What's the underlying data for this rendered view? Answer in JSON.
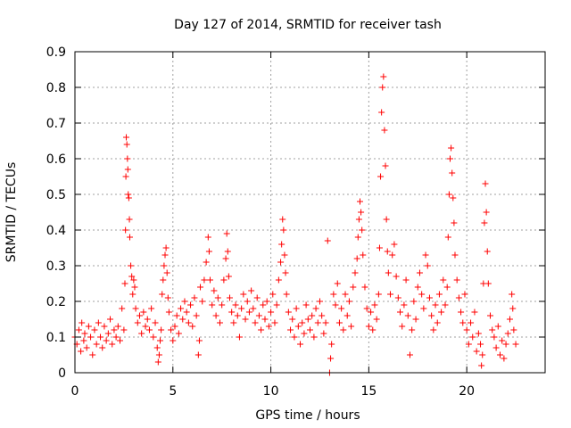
{
  "chart_data": {
    "type": "scatter",
    "title": "Day 127 of 2014, SRMTID for receiver tash",
    "xlabel": "GPS time / hours",
    "ylabel": "SRMTID / TECUs",
    "xlim": [
      0,
      24
    ],
    "ylim": [
      0,
      0.9
    ],
    "xticks": [
      0,
      5,
      10,
      15,
      20
    ],
    "xtick_labels": [
      "0",
      "5",
      "10",
      "15",
      "20"
    ],
    "yticks": [
      0,
      0.1,
      0.2,
      0.3,
      0.4,
      0.5,
      0.6,
      0.7,
      0.8,
      0.9
    ],
    "ytick_labels": [
      "0",
      "0.1",
      "0.2",
      "0.3",
      "0.4",
      "0.5",
      "0.6",
      "0.7",
      "0.8",
      "0.9"
    ],
    "grid": true,
    "marker": "plus",
    "series": [
      {
        "name": "SRMTID",
        "color": "#ff0000",
        "points": [
          [
            0.0,
            0.1
          ],
          [
            0.1,
            0.08
          ],
          [
            0.2,
            0.12
          ],
          [
            0.3,
            0.06
          ],
          [
            0.35,
            0.14
          ],
          [
            0.45,
            0.09
          ],
          [
            0.5,
            0.11
          ],
          [
            0.6,
            0.07
          ],
          [
            0.7,
            0.13
          ],
          [
            0.8,
            0.1
          ],
          [
            0.9,
            0.05
          ],
          [
            1.0,
            0.12
          ],
          [
            1.1,
            0.08
          ],
          [
            1.2,
            0.14
          ],
          [
            1.3,
            0.1
          ],
          [
            1.4,
            0.07
          ],
          [
            1.5,
            0.13
          ],
          [
            1.6,
            0.09
          ],
          [
            1.7,
            0.11
          ],
          [
            1.8,
            0.15
          ],
          [
            1.9,
            0.08
          ],
          [
            2.0,
            0.12
          ],
          [
            2.1,
            0.1
          ],
          [
            2.2,
            0.13
          ],
          [
            2.3,
            0.09
          ],
          [
            2.4,
            0.18
          ],
          [
            2.5,
            0.12
          ],
          [
            2.55,
            0.25
          ],
          [
            2.58,
            0.4
          ],
          [
            2.6,
            0.55
          ],
          [
            2.62,
            0.66
          ],
          [
            2.65,
            0.64
          ],
          [
            2.68,
            0.6
          ],
          [
            2.7,
            0.57
          ],
          [
            2.72,
            0.5
          ],
          [
            2.75,
            0.49
          ],
          [
            2.78,
            0.43
          ],
          [
            2.8,
            0.38
          ],
          [
            2.85,
            0.3
          ],
          [
            2.9,
            0.27
          ],
          [
            2.95,
            0.22
          ],
          [
            3.0,
            0.26
          ],
          [
            3.05,
            0.24
          ],
          [
            3.1,
            0.18
          ],
          [
            3.2,
            0.14
          ],
          [
            3.3,
            0.16
          ],
          [
            3.4,
            0.11
          ],
          [
            3.5,
            0.17
          ],
          [
            3.6,
            0.13
          ],
          [
            3.7,
            0.15
          ],
          [
            3.8,
            0.12
          ],
          [
            3.9,
            0.18
          ],
          [
            4.0,
            0.1
          ],
          [
            4.1,
            0.14
          ],
          [
            4.2,
            0.07
          ],
          [
            4.25,
            0.03
          ],
          [
            4.3,
            0.05
          ],
          [
            4.35,
            0.09
          ],
          [
            4.4,
            0.12
          ],
          [
            4.45,
            0.22
          ],
          [
            4.5,
            0.26
          ],
          [
            4.55,
            0.3
          ],
          [
            4.6,
            0.33
          ],
          [
            4.65,
            0.35
          ],
          [
            4.7,
            0.28
          ],
          [
            4.75,
            0.21
          ],
          [
            4.8,
            0.17
          ],
          [
            4.9,
            0.12
          ],
          [
            5.0,
            0.09
          ],
          [
            5.1,
            0.13
          ],
          [
            5.2,
            0.16
          ],
          [
            5.3,
            0.11
          ],
          [
            5.4,
            0.18
          ],
          [
            5.5,
            0.15
          ],
          [
            5.6,
            0.2
          ],
          [
            5.7,
            0.17
          ],
          [
            5.8,
            0.14
          ],
          [
            5.9,
            0.19
          ],
          [
            6.0,
            0.13
          ],
          [
            6.1,
            0.21
          ],
          [
            6.2,
            0.16
          ],
          [
            6.3,
            0.05
          ],
          [
            6.35,
            0.09
          ],
          [
            6.4,
            0.24
          ],
          [
            6.5,
            0.2
          ],
          [
            6.6,
            0.26
          ],
          [
            6.7,
            0.31
          ],
          [
            6.8,
            0.38
          ],
          [
            6.85,
            0.34
          ],
          [
            6.9,
            0.26
          ],
          [
            7.0,
            0.19
          ],
          [
            7.1,
            0.23
          ],
          [
            7.2,
            0.16
          ],
          [
            7.3,
            0.21
          ],
          [
            7.4,
            0.14
          ],
          [
            7.5,
            0.19
          ],
          [
            7.6,
            0.26
          ],
          [
            7.7,
            0.32
          ],
          [
            7.75,
            0.39
          ],
          [
            7.8,
            0.34
          ],
          [
            7.85,
            0.27
          ],
          [
            7.9,
            0.21
          ],
          [
            8.0,
            0.17
          ],
          [
            8.1,
            0.14
          ],
          [
            8.2,
            0.19
          ],
          [
            8.3,
            0.16
          ],
          [
            8.4,
            0.1
          ],
          [
            8.5,
            0.18
          ],
          [
            8.6,
            0.22
          ],
          [
            8.7,
            0.15
          ],
          [
            8.8,
            0.2
          ],
          [
            8.9,
            0.17
          ],
          [
            9.0,
            0.23
          ],
          [
            9.1,
            0.18
          ],
          [
            9.2,
            0.14
          ],
          [
            9.3,
            0.21
          ],
          [
            9.4,
            0.16
          ],
          [
            9.5,
            0.12
          ],
          [
            9.6,
            0.19
          ],
          [
            9.7,
            0.15
          ],
          [
            9.8,
            0.2
          ],
          [
            9.9,
            0.13
          ],
          [
            10.0,
            0.17
          ],
          [
            10.1,
            0.22
          ],
          [
            10.2,
            0.14
          ],
          [
            10.3,
            0.19
          ],
          [
            10.4,
            0.26
          ],
          [
            10.5,
            0.31
          ],
          [
            10.55,
            0.36
          ],
          [
            10.6,
            0.43
          ],
          [
            10.65,
            0.4
          ],
          [
            10.7,
            0.33
          ],
          [
            10.75,
            0.28
          ],
          [
            10.8,
            0.22
          ],
          [
            10.9,
            0.17
          ],
          [
            11.0,
            0.12
          ],
          [
            11.1,
            0.15
          ],
          [
            11.2,
            0.1
          ],
          [
            11.3,
            0.18
          ],
          [
            11.4,
            0.13
          ],
          [
            11.5,
            0.08
          ],
          [
            11.6,
            0.14
          ],
          [
            11.7,
            0.11
          ],
          [
            11.8,
            0.19
          ],
          [
            11.9,
            0.15
          ],
          [
            12.0,
            0.12
          ],
          [
            12.1,
            0.16
          ],
          [
            12.2,
            0.1
          ],
          [
            12.3,
            0.18
          ],
          [
            12.4,
            0.14
          ],
          [
            12.5,
            0.2
          ],
          [
            12.6,
            0.16
          ],
          [
            12.7,
            0.11
          ],
          [
            12.8,
            0.14
          ],
          [
            12.9,
            0.37
          ],
          [
            13.0,
            0.0
          ],
          [
            13.05,
            0.04
          ],
          [
            13.1,
            0.08
          ],
          [
            13.2,
            0.22
          ],
          [
            13.3,
            0.19
          ],
          [
            13.4,
            0.25
          ],
          [
            13.5,
            0.14
          ],
          [
            13.6,
            0.18
          ],
          [
            13.7,
            0.12
          ],
          [
            13.8,
            0.22
          ],
          [
            13.9,
            0.16
          ],
          [
            14.0,
            0.2
          ],
          [
            14.1,
            0.13
          ],
          [
            14.2,
            0.24
          ],
          [
            14.3,
            0.28
          ],
          [
            14.4,
            0.32
          ],
          [
            14.45,
            0.38
          ],
          [
            14.5,
            0.43
          ],
          [
            14.55,
            0.48
          ],
          [
            14.6,
            0.45
          ],
          [
            14.65,
            0.4
          ],
          [
            14.7,
            0.33
          ],
          [
            14.8,
            0.24
          ],
          [
            14.9,
            0.18
          ],
          [
            15.0,
            0.13
          ],
          [
            15.1,
            0.17
          ],
          [
            15.2,
            0.12
          ],
          [
            15.3,
            0.19
          ],
          [
            15.4,
            0.15
          ],
          [
            15.5,
            0.22
          ],
          [
            15.55,
            0.35
          ],
          [
            15.6,
            0.55
          ],
          [
            15.65,
            0.73
          ],
          [
            15.7,
            0.8
          ],
          [
            15.75,
            0.83
          ],
          [
            15.8,
            0.68
          ],
          [
            15.85,
            0.58
          ],
          [
            15.9,
            0.43
          ],
          [
            15.95,
            0.34
          ],
          [
            16.0,
            0.28
          ],
          [
            16.1,
            0.22
          ],
          [
            16.2,
            0.33
          ],
          [
            16.3,
            0.36
          ],
          [
            16.4,
            0.27
          ],
          [
            16.5,
            0.21
          ],
          [
            16.6,
            0.17
          ],
          [
            16.7,
            0.13
          ],
          [
            16.8,
            0.19
          ],
          [
            16.9,
            0.26
          ],
          [
            17.0,
            0.16
          ],
          [
            17.1,
            0.05
          ],
          [
            17.2,
            0.12
          ],
          [
            17.3,
            0.2
          ],
          [
            17.4,
            0.15
          ],
          [
            17.5,
            0.24
          ],
          [
            17.6,
            0.28
          ],
          [
            17.7,
            0.22
          ],
          [
            17.8,
            0.18
          ],
          [
            17.9,
            0.33
          ],
          [
            18.0,
            0.3
          ],
          [
            18.1,
            0.21
          ],
          [
            18.2,
            0.16
          ],
          [
            18.3,
            0.12
          ],
          [
            18.4,
            0.19
          ],
          [
            18.5,
            0.14
          ],
          [
            18.6,
            0.22
          ],
          [
            18.7,
            0.17
          ],
          [
            18.8,
            0.26
          ],
          [
            18.9,
            0.19
          ],
          [
            19.0,
            0.24
          ],
          [
            19.05,
            0.38
          ],
          [
            19.1,
            0.5
          ],
          [
            19.15,
            0.6
          ],
          [
            19.2,
            0.63
          ],
          [
            19.25,
            0.56
          ],
          [
            19.3,
            0.49
          ],
          [
            19.35,
            0.42
          ],
          [
            19.4,
            0.33
          ],
          [
            19.5,
            0.26
          ],
          [
            19.6,
            0.21
          ],
          [
            19.7,
            0.17
          ],
          [
            19.8,
            0.14
          ],
          [
            19.9,
            0.22
          ],
          [
            20.0,
            0.12
          ],
          [
            20.1,
            0.08
          ],
          [
            20.2,
            0.14
          ],
          [
            20.3,
            0.1
          ],
          [
            20.4,
            0.17
          ],
          [
            20.5,
            0.06
          ],
          [
            20.6,
            0.11
          ],
          [
            20.7,
            0.08
          ],
          [
            20.75,
            0.02
          ],
          [
            20.8,
            0.05
          ],
          [
            20.85,
            0.25
          ],
          [
            20.9,
            0.42
          ],
          [
            20.95,
            0.53
          ],
          [
            21.0,
            0.45
          ],
          [
            21.05,
            0.34
          ],
          [
            21.1,
            0.25
          ],
          [
            21.2,
            0.16
          ],
          [
            21.3,
            0.12
          ],
          [
            21.4,
            0.1
          ],
          [
            21.5,
            0.07
          ],
          [
            21.6,
            0.13
          ],
          [
            21.7,
            0.05
          ],
          [
            21.8,
            0.09
          ],
          [
            21.9,
            0.04
          ],
          [
            22.0,
            0.08
          ],
          [
            22.1,
            0.11
          ],
          [
            22.2,
            0.15
          ],
          [
            22.3,
            0.22
          ],
          [
            22.35,
            0.18
          ],
          [
            22.4,
            0.12
          ],
          [
            22.5,
            0.08
          ]
        ]
      }
    ]
  }
}
